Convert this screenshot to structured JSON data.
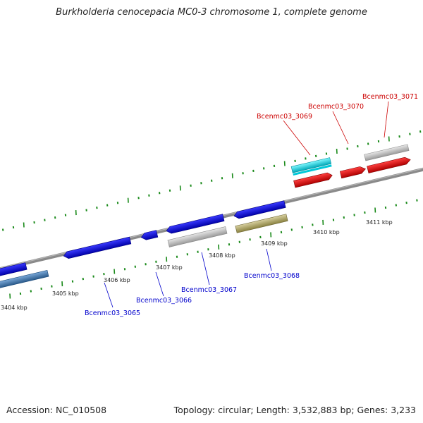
{
  "title": "Burkholderia cenocepacia MC0-3 chromosome 1, complete genome",
  "accession": "Accession: NC_010508",
  "topology": "Topology: circular; Length: 3,532,883 bp; Genes: 3,233",
  "colors": {
    "backbone": "#8a8a8a",
    "tick": "#1a8a1a",
    "gene_plus": "#ff0000",
    "gene_minus": "#0000ee",
    "cyan": "#00e5ee",
    "grey": "#c8c8c8",
    "olive": "#b8b070",
    "steelblue": "#4a7fb0",
    "label_minus": "#0000cc",
    "label_plus": "#cc0000"
  },
  "scale_labels": [
    "3404 kbp",
    "3405 kbp",
    "3406 kbp",
    "3407 kbp",
    "3408 kbp",
    "3409 kbp",
    "3410 kbp",
    "3411 kbp"
  ],
  "gene_labels_minus": [
    "Bcenmc03_3065",
    "Bcenmc03_3066",
    "Bcenmc03_3067",
    "Bcenmc03_3068"
  ],
  "gene_labels_plus": [
    "Bcenmc03_3069",
    "Bcenmc03_3070",
    "Bcenmc03_3071"
  ]
}
